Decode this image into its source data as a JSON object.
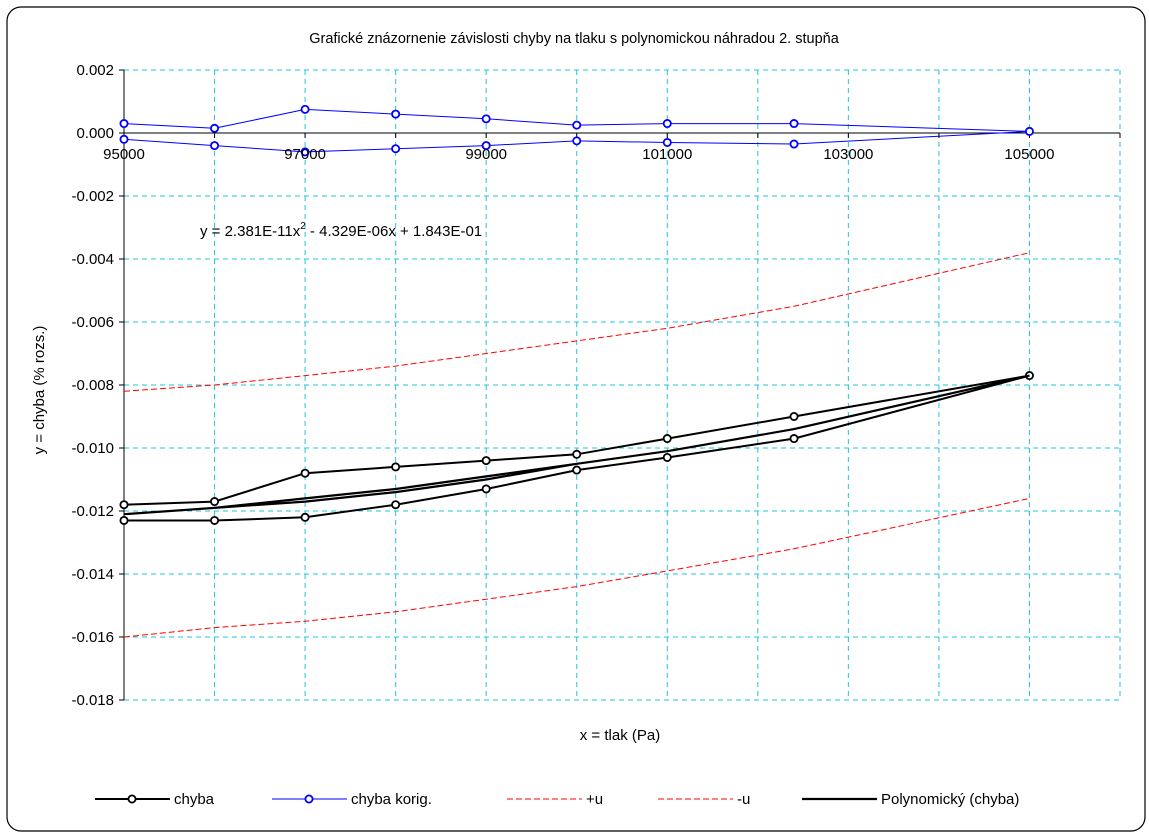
{
  "chart_data": {
    "type": "line",
    "title": "Grafické znázornenie závislosti chyby na tlaku s polynomickou náhradou 2. stupňa",
    "xlabel": "x = tlak (Pa)",
    "ylabel": "y = chyba (% rozs.)",
    "xlim": [
      95000,
      106000
    ],
    "ylim": [
      -0.018,
      0.002
    ],
    "grid": true,
    "legend_position": "bottom",
    "x_ticks": [
      95000,
      97000,
      99000,
      101000,
      103000,
      105000
    ],
    "x_tick_labels": [
      "95000",
      "97000",
      "99000",
      "101000",
      "103000",
      "105000"
    ],
    "y_ticks": [
      0.002,
      0.0,
      -0.002,
      -0.004,
      -0.006,
      -0.008,
      -0.01,
      -0.012,
      -0.014,
      -0.016,
      -0.018
    ],
    "y_tick_labels": [
      "0.002",
      "0.000",
      "-0.002",
      "-0.004",
      "-0.006",
      "-0.008",
      "-0.010",
      "-0.012",
      "-0.014",
      "-0.016",
      "-0.018"
    ],
    "annotation": {
      "before": "y = 2.381E-11x",
      "sup": "2",
      "after": " - 4.329E-06x + 1.843E-01"
    },
    "series": [
      {
        "name": "chyba",
        "color": "#000000",
        "style": "solid-marker",
        "x": [
          95000,
          96000,
          97000,
          98000,
          99000,
          100000,
          101000,
          102400,
          105000,
          102400,
          101000,
          100000,
          99000,
          98000,
          97000,
          96000,
          95000
        ],
        "y": [
          -0.0118,
          -0.0117,
          -0.0108,
          -0.0106,
          -0.0104,
          -0.0102,
          -0.0097,
          -0.009,
          -0.0077,
          -0.0097,
          -0.0103,
          -0.0107,
          -0.0113,
          -0.0118,
          -0.0122,
          -0.0123,
          -0.0123
        ]
      },
      {
        "name": "chyba korig.",
        "color": "#0000ff",
        "style": "solid-marker",
        "x": [
          95000,
          96000,
          97000,
          98000,
          99000,
          100000,
          101000,
          102400,
          105000,
          102400,
          101000,
          100000,
          99000,
          98000,
          97000,
          96000,
          95000
        ],
        "y": [
          0.0003,
          0.00015,
          0.00075,
          0.0006,
          0.00045,
          0.00025,
          0.0003,
          0.0003,
          5e-05,
          -0.00035,
          -0.0003,
          -0.00025,
          -0.0004,
          -0.0005,
          -0.0006,
          -0.0004,
          -0.0002
        ]
      },
      {
        "name": "+u",
        "color": "#ff0000",
        "style": "dashed",
        "x": [
          95000,
          96000,
          97000,
          98000,
          99000,
          100000,
          101000,
          102400,
          105000
        ],
        "y": [
          -0.0082,
          -0.008,
          -0.0077,
          -0.0074,
          -0.007,
          -0.0066,
          -0.0062,
          -0.0055,
          -0.0038
        ]
      },
      {
        "name": "-u",
        "color": "#ff0000",
        "style": "dashed",
        "x": [
          95000,
          96000,
          97000,
          98000,
          99000,
          100000,
          101000,
          102400,
          105000
        ],
        "y": [
          -0.016,
          -0.0157,
          -0.0155,
          -0.0152,
          -0.0148,
          -0.0144,
          -0.0139,
          -0.0132,
          -0.0116
        ]
      },
      {
        "name": "Polynomický (chyba)",
        "color": "#000000",
        "style": "solid-thick",
        "x": [
          95000,
          96000,
          97000,
          98000,
          99000,
          100000,
          101000,
          102400,
          105000,
          102400,
          101000,
          100000,
          99000,
          98000,
          97000,
          96000,
          95000
        ],
        "y": [
          -0.0121,
          -0.0119,
          -0.0116,
          -0.0113,
          -0.0109,
          -0.0105,
          -0.0101,
          -0.0094,
          -0.0077,
          -0.0094,
          -0.0101,
          -0.0105,
          -0.011,
          -0.0114,
          -0.0117,
          -0.0119,
          -0.0121
        ]
      }
    ]
  }
}
